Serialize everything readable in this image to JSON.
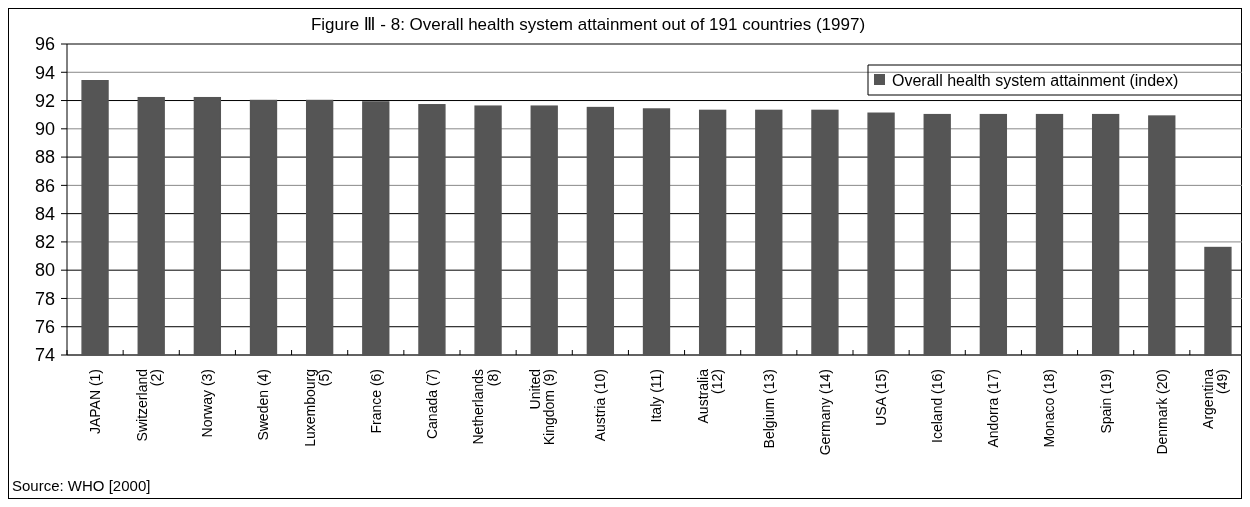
{
  "chart_data": {
    "type": "bar",
    "title": "Figure Ⅲ - 8: Overall health system attainment out of 191 countries (1997)",
    "categories": [
      "JAPAN (1)",
      "Switzerland (2)",
      "Norway (3)",
      "Sweden (4)",
      "Luxembourg (5)",
      "France (6)",
      "Canada (7)",
      "Netherlands (8)",
      "United Kingdom (9)",
      "Austria (10)",
      "Italy (11)",
      "Australia (12)",
      "Belgium (13)",
      "Germany (14)",
      "USA (15)",
      "Iceland (16)",
      "Andorra (17)",
      "Monaco (18)",
      "Spain (19)",
      "Denmark (20)",
      "Argentina (49)"
    ],
    "series": [
      {
        "name": "Overall health system attainment (index)",
        "color": "#555555",
        "values": [
          93.4,
          92.2,
          92.2,
          92.0,
          92.0,
          91.9,
          91.7,
          91.6,
          91.6,
          91.5,
          91.4,
          91.3,
          91.3,
          91.3,
          91.1,
          91.0,
          91.0,
          91.0,
          91.0,
          90.9,
          81.6
        ]
      }
    ],
    "ylim": [
      74,
      96
    ],
    "yticks": [
      74,
      76,
      78,
      80,
      82,
      84,
      86,
      88,
      90,
      92,
      94,
      96
    ],
    "grid": "y",
    "legend": "top right",
    "annotations": [
      "Source: WHO [2000]"
    ]
  }
}
